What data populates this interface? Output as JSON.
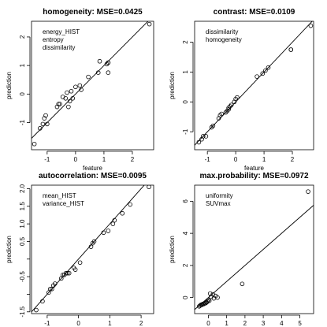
{
  "chart_data": [
    {
      "type": "scatter",
      "title": "homogeneity: MSE=0.0425",
      "xlabel": "feature",
      "ylabel": "prediction",
      "legend_items": [
        "energy_HIST",
        "entropy",
        "dissimilarity"
      ],
      "legend_placement": "top-left",
      "xlim": [
        -1.55,
        2.75
      ],
      "ylim": [
        -1.95,
        2.55
      ],
      "xticks": [
        -1,
        0,
        1,
        2
      ],
      "yticks": [
        -1,
        0,
        1,
        2
      ],
      "xtick_labels": [
        "-1",
        "0",
        "1",
        "2"
      ],
      "ytick_labels": [
        "-1",
        "0",
        "1",
        "2"
      ],
      "fit_line": {
        "slope": 1.0,
        "intercept": 0.0
      },
      "points": [
        {
          "x": -1.45,
          "y": -1.75
        },
        {
          "x": -1.25,
          "y": -1.2
        },
        {
          "x": -1.15,
          "y": -1.05
        },
        {
          "x": -1.1,
          "y": -0.85
        },
        {
          "x": -1.05,
          "y": -0.75
        },
        {
          "x": -1.0,
          "y": -1.05
        },
        {
          "x": -0.65,
          "y": -0.45
        },
        {
          "x": -0.6,
          "y": -0.35
        },
        {
          "x": -0.55,
          "y": -0.35
        },
        {
          "x": -0.45,
          "y": -0.1
        },
        {
          "x": -0.35,
          "y": -0.15
        },
        {
          "x": -0.3,
          "y": 0.05
        },
        {
          "x": -0.25,
          "y": -0.45
        },
        {
          "x": -0.2,
          "y": -0.25
        },
        {
          "x": -0.15,
          "y": 0.1
        },
        {
          "x": -0.1,
          "y": -0.15
        },
        {
          "x": 0.0,
          "y": 0.25
        },
        {
          "x": 0.15,
          "y": 0.3
        },
        {
          "x": 0.2,
          "y": 0.15
        },
        {
          "x": 0.45,
          "y": 0.6
        },
        {
          "x": 0.8,
          "y": 0.75
        },
        {
          "x": 0.85,
          "y": 1.15
        },
        {
          "x": 1.1,
          "y": 1.05
        },
        {
          "x": 1.15,
          "y": 1.1
        },
        {
          "x": 1.15,
          "y": 1.1
        },
        {
          "x": 1.15,
          "y": 0.75
        },
        {
          "x": 2.6,
          "y": 2.45
        }
      ]
    },
    {
      "type": "scatter",
      "title": "contrast: MSE=0.0109",
      "xlabel": "feature",
      "ylabel": "prediction",
      "legend_items": [
        "dissimilarity",
        "homogeneity"
      ],
      "legend_placement": "top-left",
      "xlim": [
        -1.45,
        2.75
      ],
      "ylim": [
        -1.6,
        2.7
      ],
      "xticks": [
        -1,
        0,
        1,
        2
      ],
      "yticks": [
        -1,
        0,
        1,
        2
      ],
      "xtick_labels": [
        "-1",
        "0",
        "1",
        "2"
      ],
      "ytick_labels": [
        "-1",
        "0",
        "1",
        "2"
      ],
      "fit_line": {
        "slope": 1.0,
        "intercept": 0.0
      },
      "points": [
        {
          "x": -1.3,
          "y": -1.35
        },
        {
          "x": -1.2,
          "y": -1.25
        },
        {
          "x": -1.15,
          "y": -1.15
        },
        {
          "x": -1.05,
          "y": -1.15
        },
        {
          "x": -0.85,
          "y": -0.85
        },
        {
          "x": -0.8,
          "y": -0.8
        },
        {
          "x": -0.6,
          "y": -0.55
        },
        {
          "x": -0.55,
          "y": -0.45
        },
        {
          "x": -0.5,
          "y": -0.4
        },
        {
          "x": -0.35,
          "y": -0.35
        },
        {
          "x": -0.3,
          "y": -0.3
        },
        {
          "x": -0.25,
          "y": -0.25
        },
        {
          "x": -0.25,
          "y": -0.2
        },
        {
          "x": -0.2,
          "y": -0.15
        },
        {
          "x": -0.15,
          "y": -0.1
        },
        {
          "x": -0.05,
          "y": 0.0
        },
        {
          "x": 0.0,
          "y": 0.1
        },
        {
          "x": 0.05,
          "y": 0.15
        },
        {
          "x": 0.75,
          "y": 0.85
        },
        {
          "x": 0.95,
          "y": 0.95
        },
        {
          "x": 1.05,
          "y": 1.05
        },
        {
          "x": 1.15,
          "y": 1.15
        },
        {
          "x": 1.95,
          "y": 1.75
        },
        {
          "x": 1.95,
          "y": 1.75
        },
        {
          "x": 2.65,
          "y": 2.55
        }
      ]
    },
    {
      "type": "scatter",
      "title": "autocorrelation: MSE=0.0095",
      "xlabel": "feature",
      "ylabel": "prediction",
      "legend_items": [
        "mean_HIST",
        "variance_HIST"
      ],
      "legend_placement": "top-left",
      "xlim": [
        -1.5,
        2.4
      ],
      "ylim": [
        -1.55,
        2.1
      ],
      "xticks": [
        -1,
        0,
        1,
        2
      ],
      "yticks": [
        -1.5,
        -1.0,
        -0.5,
        0.0,
        0.5,
        1.0,
        1.5,
        2.0
      ],
      "xtick_labels": [
        "-1",
        "0",
        "1",
        "2"
      ],
      "ytick_labels": [
        "-1.5",
        "",
        "-0.5",
        "",
        "0.5",
        "1.0",
        "1.5",
        "2.0"
      ],
      "fit_line": {
        "slope": 1.0,
        "intercept": 0.0
      },
      "points": [
        {
          "x": -1.35,
          "y": -1.45
        },
        {
          "x": -1.15,
          "y": -1.2
        },
        {
          "x": -0.95,
          "y": -0.95
        },
        {
          "x": -0.9,
          "y": -0.85
        },
        {
          "x": -0.85,
          "y": -0.85
        },
        {
          "x": -0.8,
          "y": -0.75
        },
        {
          "x": -0.75,
          "y": -0.7
        },
        {
          "x": -0.55,
          "y": -0.55
        },
        {
          "x": -0.5,
          "y": -0.45
        },
        {
          "x": -0.45,
          "y": -0.45
        },
        {
          "x": -0.4,
          "y": -0.4
        },
        {
          "x": -0.35,
          "y": -0.4
        },
        {
          "x": -0.3,
          "y": -0.4
        },
        {
          "x": -0.15,
          "y": -0.25
        },
        {
          "x": -0.1,
          "y": -0.3
        },
        {
          "x": 0.05,
          "y": -0.1
        },
        {
          "x": 0.4,
          "y": 0.35
        },
        {
          "x": 0.45,
          "y": 0.45
        },
        {
          "x": 0.5,
          "y": 0.5
        },
        {
          "x": 0.8,
          "y": 0.75
        },
        {
          "x": 0.95,
          "y": 0.8
        },
        {
          "x": 1.1,
          "y": 1.0
        },
        {
          "x": 1.15,
          "y": 1.1
        },
        {
          "x": 1.4,
          "y": 1.3
        },
        {
          "x": 1.65,
          "y": 1.55
        },
        {
          "x": 2.25,
          "y": 2.05
        }
      ]
    },
    {
      "type": "scatter",
      "title": "max.probability: MSE=0.0972",
      "xlabel": "feature",
      "ylabel": "prediction",
      "legend_items": [
        "uniformity",
        "SUVmax"
      ],
      "legend_placement": "top-left",
      "xlim": [
        -0.75,
        5.75
      ],
      "ylim": [
        -1.0,
        7.0
      ],
      "xticks": [
        0,
        1,
        2,
        3,
        4,
        5
      ],
      "yticks": [
        0,
        2,
        4,
        6
      ],
      "xtick_labels": [
        "0",
        "1",
        "2",
        "3",
        "4",
        "5"
      ],
      "ytick_labels": [
        "0",
        "2",
        "4",
        "6"
      ],
      "fit_line": {
        "slope": 1.0,
        "intercept": 0.0
      },
      "points": [
        {
          "x": -0.5,
          "y": -0.55
        },
        {
          "x": -0.45,
          "y": -0.5
        },
        {
          "x": -0.4,
          "y": -0.45
        },
        {
          "x": -0.35,
          "y": -0.45
        },
        {
          "x": -0.3,
          "y": -0.4
        },
        {
          "x": -0.25,
          "y": -0.4
        },
        {
          "x": -0.2,
          "y": -0.35
        },
        {
          "x": -0.15,
          "y": -0.35
        },
        {
          "x": -0.1,
          "y": -0.3
        },
        {
          "x": -0.05,
          "y": -0.25
        },
        {
          "x": 0.0,
          "y": -0.15
        },
        {
          "x": 0.05,
          "y": -0.2
        },
        {
          "x": 0.1,
          "y": 0.25
        },
        {
          "x": 0.15,
          "y": 0.05
        },
        {
          "x": 0.25,
          "y": 0.2
        },
        {
          "x": 0.3,
          "y": -0.05
        },
        {
          "x": 0.4,
          "y": 0.1
        },
        {
          "x": 0.5,
          "y": 0.0
        },
        {
          "x": 1.85,
          "y": 0.85
        },
        {
          "x": 5.45,
          "y": 6.6
        }
      ]
    }
  ]
}
